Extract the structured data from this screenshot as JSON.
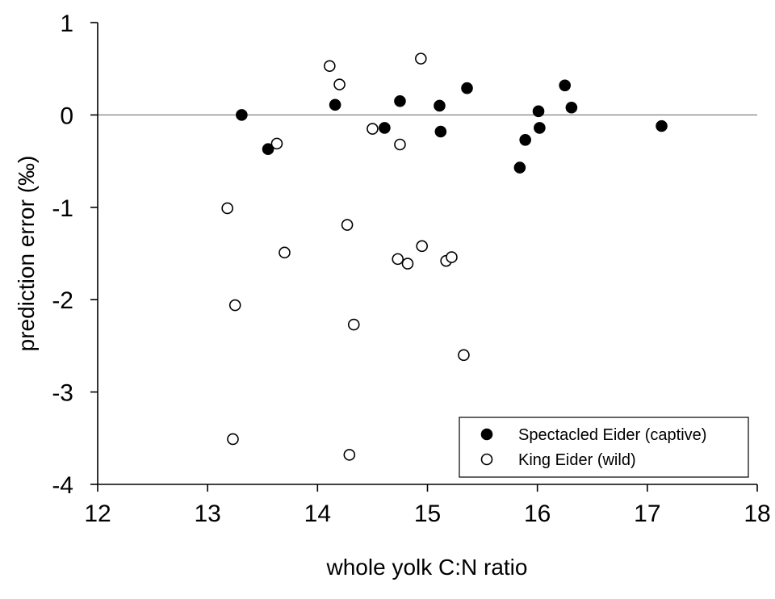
{
  "chart_data": {
    "type": "scatter",
    "xlabel": "whole yolk C:N ratio",
    "ylabel": "prediction error (‰)",
    "xlim": [
      12,
      18
    ],
    "ylim": [
      -4,
      1
    ],
    "x_ticks": [
      "12",
      "13",
      "14",
      "15",
      "16",
      "17",
      "18"
    ],
    "y_ticks": [
      "1",
      "0",
      "-1",
      "-2",
      "-3",
      "-4"
    ],
    "reference_line_y": 0,
    "grid": false,
    "legend_position": "bottom-right",
    "series": [
      {
        "name": "Spectacled Eider (captive)",
        "marker": "filled-circle",
        "color": "#000000",
        "points": [
          {
            "x": 13.31,
            "y": 0.0
          },
          {
            "x": 13.55,
            "y": -0.37
          },
          {
            "x": 14.16,
            "y": 0.11
          },
          {
            "x": 14.61,
            "y": -0.14
          },
          {
            "x": 14.75,
            "y": 0.15
          },
          {
            "x": 15.11,
            "y": 0.1
          },
          {
            "x": 15.12,
            "y": -0.18
          },
          {
            "x": 15.36,
            "y": 0.29
          },
          {
            "x": 15.84,
            "y": -0.57
          },
          {
            "x": 15.89,
            "y": -0.27
          },
          {
            "x": 16.01,
            "y": 0.04
          },
          {
            "x": 16.02,
            "y": -0.14
          },
          {
            "x": 16.25,
            "y": 0.32
          },
          {
            "x": 16.31,
            "y": 0.08
          },
          {
            "x": 17.13,
            "y": -0.12
          }
        ]
      },
      {
        "name": "King Eider (wild)",
        "marker": "open-circle",
        "color": "#000000",
        "points": [
          {
            "x": 14.11,
            "y": 0.53
          },
          {
            "x": 14.94,
            "y": 0.61
          },
          {
            "x": 14.2,
            "y": 0.33
          },
          {
            "x": 14.5,
            "y": -0.15
          },
          {
            "x": 13.63,
            "y": -0.31
          },
          {
            "x": 14.75,
            "y": -0.32
          },
          {
            "x": 13.18,
            "y": -1.01
          },
          {
            "x": 14.27,
            "y": -1.19
          },
          {
            "x": 13.7,
            "y": -1.49
          },
          {
            "x": 14.95,
            "y": -1.42
          },
          {
            "x": 14.73,
            "y": -1.56
          },
          {
            "x": 14.82,
            "y": -1.61
          },
          {
            "x": 15.17,
            "y": -1.58
          },
          {
            "x": 15.22,
            "y": -1.54
          },
          {
            "x": 13.25,
            "y": -2.06
          },
          {
            "x": 14.33,
            "y": -2.27
          },
          {
            "x": 15.33,
            "y": -2.6
          },
          {
            "x": 13.23,
            "y": -3.51
          },
          {
            "x": 14.29,
            "y": -3.68
          }
        ]
      }
    ]
  }
}
